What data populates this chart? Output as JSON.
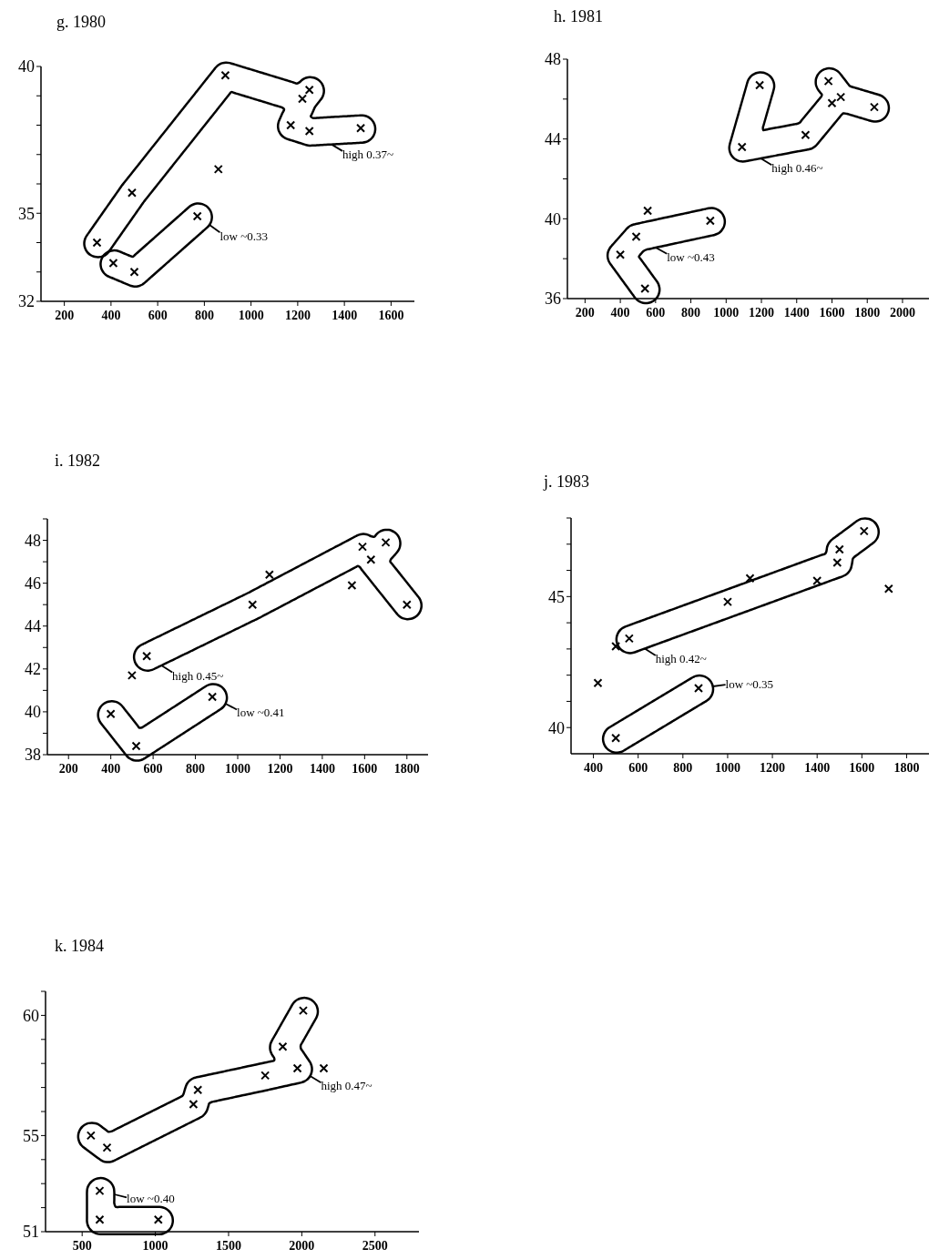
{
  "chart_data": [
    {
      "type": "scatter",
      "title": "g. 1980",
      "xlim": [
        100,
        1700
      ],
      "xticks": [
        200,
        400,
        600,
        800,
        1000,
        1200,
        1400,
        1600
      ],
      "ylim": [
        32,
        40
      ],
      "yticks": [
        32,
        {
          "value": 33,
          "label": null
        },
        {
          "value": 34,
          "label": null
        },
        35,
        {
          "value": 36,
          "label": null
        },
        {
          "value": 37,
          "label": null
        },
        {
          "value": 38,
          "label": null
        },
        {
          "value": 39,
          "label": null
        },
        40
      ],
      "marker": "cross",
      "annotations": [
        "high 0.37~",
        "low ~0.33"
      ],
      "series": [
        {
          "color": "#000000",
          "x": [
            860
          ],
          "values": [
            36.5
          ]
        },
        {
          "color": "#000000",
          "x": [
            890,
            1250,
            1220,
            1170,
            1250,
            1470,
            490,
            340
          ],
          "values": [
            39.7,
            39.2,
            38.9,
            38.0,
            37.8,
            37.9,
            35.7,
            34.0
          ]
        },
        {
          "color": "#000000",
          "x": [
            770,
            410,
            500
          ],
          "values": [
            34.9,
            33.3,
            33.0
          ]
        }
      ]
    },
    {
      "type": "scatter",
      "title": "h. 1981",
      "xlim": [
        100,
        2150
      ],
      "xticks": [
        200,
        400,
        600,
        800,
        1000,
        1200,
        1400,
        1600,
        1800,
        2000
      ],
      "ylim": [
        36,
        48
      ],
      "yticks": [
        36,
        {
          "value": 38,
          "label": null
        },
        40,
        {
          "value": 42,
          "label": null
        },
        44,
        {
          "value": 46,
          "label": null
        },
        48
      ],
      "marker": "cross",
      "annotations": [
        "high 0.46~",
        "low ~0.43"
      ],
      "series": [
        {
          "color": "#000000",
          "x": [
            555
          ],
          "values": [
            40.4
          ]
        },
        {
          "color": "#000000",
          "x": [
            1190,
            1580,
            1650,
            1600,
            1840,
            1450,
            1090
          ],
          "values": [
            46.7,
            46.9,
            46.1,
            45.8,
            45.6,
            44.2,
            43.6
          ]
        },
        {
          "color": "#000000",
          "x": [
            910,
            490,
            400,
            540
          ],
          "values": [
            39.9,
            39.1,
            38.2,
            36.5
          ]
        }
      ]
    },
    {
      "type": "scatter",
      "title": "i. 1982",
      "xlim": [
        100,
        1900
      ],
      "xticks": [
        200,
        400,
        600,
        800,
        1000,
        1200,
        1400,
        1600,
        1800
      ],
      "ylim": [
        38,
        49
      ],
      "yticks": [
        38,
        {
          "value": 39,
          "label": null
        },
        40,
        {
          "value": 41,
          "label": null
        },
        42,
        {
          "value": 43,
          "label": null
        },
        44,
        {
          "value": 45,
          "label": null
        },
        46,
        {
          "value": 47,
          "label": null
        },
        48,
        {
          "value": 49,
          "label": null
        }
      ],
      "marker": "cross",
      "annotations": [
        "high 0.45~",
        "low ~0.41"
      ],
      "series": [
        {
          "color": "#000000",
          "x": [
            1540,
            1150,
            500
          ],
          "values": [
            45.9,
            46.4,
            41.7
          ]
        },
        {
          "color": "#000000",
          "x": [
            1700,
            1590,
            1630,
            1800,
            1070,
            570
          ],
          "values": [
            47.9,
            47.7,
            47.1,
            45.0,
            45.0,
            42.6
          ]
        },
        {
          "color": "#000000",
          "x": [
            880,
            400,
            520
          ],
          "values": [
            40.7,
            39.9,
            38.4
          ]
        }
      ]
    },
    {
      "type": "scatter",
      "title": "j. 1983",
      "xlim": [
        300,
        1900
      ],
      "xticks": [
        400,
        600,
        800,
        1000,
        1200,
        1400,
        1600,
        1800
      ],
      "ylim": [
        39,
        48
      ],
      "yticks": [
        40,
        {
          "value": 41,
          "label": null
        },
        {
          "value": 42,
          "label": null
        },
        {
          "value": 43,
          "label": null
        },
        {
          "value": 44,
          "label": null
        },
        45,
        {
          "value": 46,
          "label": null
        },
        {
          "value": 47,
          "label": null
        },
        {
          "value": 48,
          "label": null
        }
      ],
      "marker": "cross",
      "annotations": [
        "high 0.42~",
        "low ~0.35"
      ],
      "series": [
        {
          "color": "#000000",
          "x": [
            1720,
            1400,
            1100,
            1000,
            500,
            420
          ],
          "values": [
            45.3,
            45.6,
            45.7,
            44.8,
            43.1,
            41.7
          ]
        },
        {
          "color": "#000000",
          "x": [
            1610,
            1500,
            1490,
            560
          ],
          "values": [
            47.5,
            46.8,
            46.3,
            43.4
          ]
        },
        {
          "color": "#000000",
          "x": [
            870,
            500
          ],
          "values": [
            41.5,
            39.6
          ]
        }
      ]
    },
    {
      "type": "scatter",
      "title": "k. 1984",
      "xlim": [
        250,
        2800
      ],
      "xticks": [
        500,
        1000,
        1500,
        2000,
        2500
      ],
      "ylim": [
        51,
        61
      ],
      "yticks": [
        51,
        {
          "value": 52,
          "label": null
        },
        {
          "value": 53,
          "label": null
        },
        {
          "value": 54,
          "label": null
        },
        55,
        {
          "value": 56,
          "label": null
        },
        {
          "value": 57,
          "label": null
        },
        {
          "value": 58,
          "label": null
        },
        {
          "value": 59,
          "label": null
        },
        60,
        {
          "value": 61,
          "label": null
        }
      ],
      "marker": "cross",
      "annotations": [
        "high 0.47~",
        "low ~0.40"
      ],
      "series": [
        {
          "color": "#000000",
          "x": [
            2150
          ],
          "values": [
            57.8
          ]
        },
        {
          "color": "#000000",
          "x": [
            2010,
            1870,
            1970,
            1750,
            1290,
            1260,
            560,
            670
          ],
          "values": [
            60.2,
            58.7,
            57.8,
            57.5,
            56.9,
            56.3,
            55.0,
            54.5
          ]
        },
        {
          "color": "#000000",
          "x": [
            620,
            620,
            1020
          ],
          "values": [
            52.7,
            51.5,
            51.5
          ]
        }
      ]
    }
  ]
}
